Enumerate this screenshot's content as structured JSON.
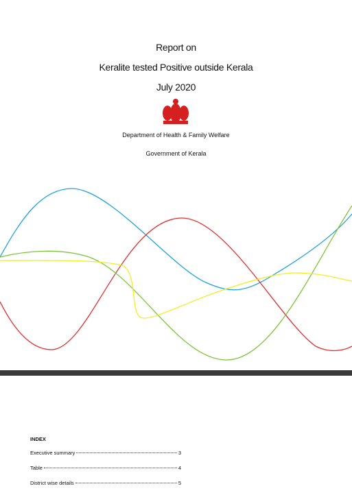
{
  "header": {
    "title_lines": [
      "Report on",
      "Keralite tested Positive outside Kerala",
      "July 2020"
    ],
    "department": "Department of Health & Family Welfare",
    "government": "Government of Kerala"
  },
  "index": {
    "heading": "INDEX",
    "entries": [
      {
        "title": "Executive summary",
        "page": 3
      },
      {
        "title": "Table",
        "page": 4
      },
      {
        "title": "District wise details",
        "page": 5
      }
    ]
  }
}
